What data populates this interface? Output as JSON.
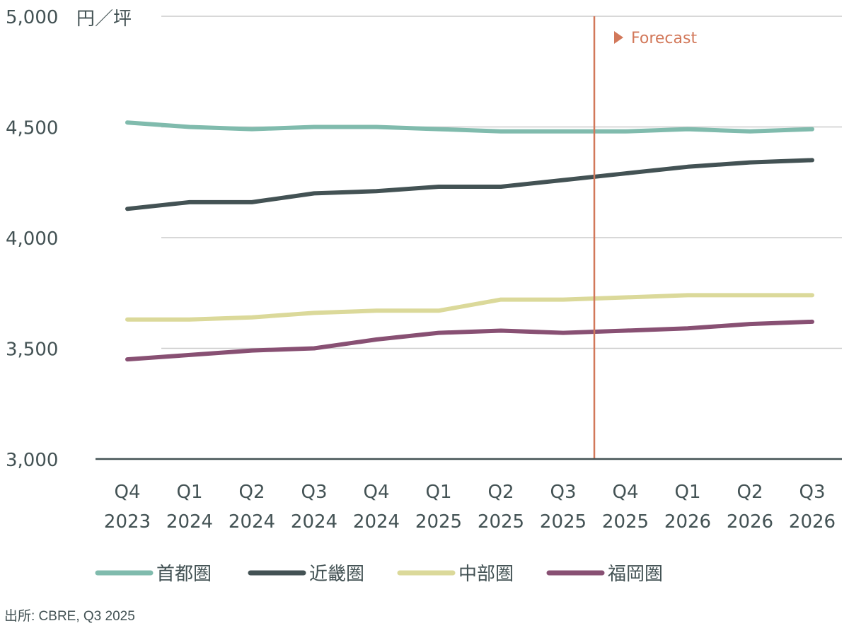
{
  "chart_data": {
    "type": "line",
    "title": "",
    "unit": "円／坪",
    "xlabel": "",
    "ylabel": "円／坪",
    "ylim": [
      3000,
      5000
    ],
    "yticks": [
      3000,
      3500,
      4000,
      4500,
      5000
    ],
    "ytick_labels": [
      "3,000",
      "3,500",
      "4,000",
      "4,500",
      "5,000"
    ],
    "categories": [
      [
        "Q4",
        "2023"
      ],
      [
        "Q1",
        "2024"
      ],
      [
        "Q2",
        "2024"
      ],
      [
        "Q3",
        "2024"
      ],
      [
        "Q4",
        "2024"
      ],
      [
        "Q1",
        "2025"
      ],
      [
        "Q2",
        "2025"
      ],
      [
        "Q3",
        "2025"
      ],
      [
        "Q4",
        "2025"
      ],
      [
        "Q1",
        "2026"
      ],
      [
        "Q2",
        "2026"
      ],
      [
        "Q3",
        "2026"
      ]
    ],
    "forecast_label": "Forecast",
    "forecast_start_between": [
      7,
      8
    ],
    "grid": true,
    "legend_position": "bottom",
    "series": [
      {
        "name": "首都圏",
        "color": "#80BBAD",
        "values": [
          4520,
          4500,
          4490,
          4500,
          4500,
          4490,
          4480,
          4480,
          4480,
          4490,
          4480,
          4490
        ]
      },
      {
        "name": "近畿圏",
        "color": "#435254",
        "values": [
          4130,
          4160,
          4160,
          4200,
          4210,
          4230,
          4230,
          4260,
          4290,
          4320,
          4340,
          4350
        ]
      },
      {
        "name": "中部圏",
        "color": "#DBD99A",
        "values": [
          3630,
          3630,
          3640,
          3660,
          3670,
          3670,
          3720,
          3720,
          3730,
          3740,
          3740,
          3740
        ]
      },
      {
        "name": "福岡圏",
        "color": "#885073",
        "values": [
          3450,
          3470,
          3490,
          3500,
          3540,
          3570,
          3580,
          3570,
          3580,
          3590,
          3610,
          3620
        ]
      }
    ],
    "colors": {
      "forecast": "#D2785A",
      "grid": "#CCCCCC",
      "axis": "#435254"
    }
  },
  "source": "出所: CBRE, Q3 2025"
}
